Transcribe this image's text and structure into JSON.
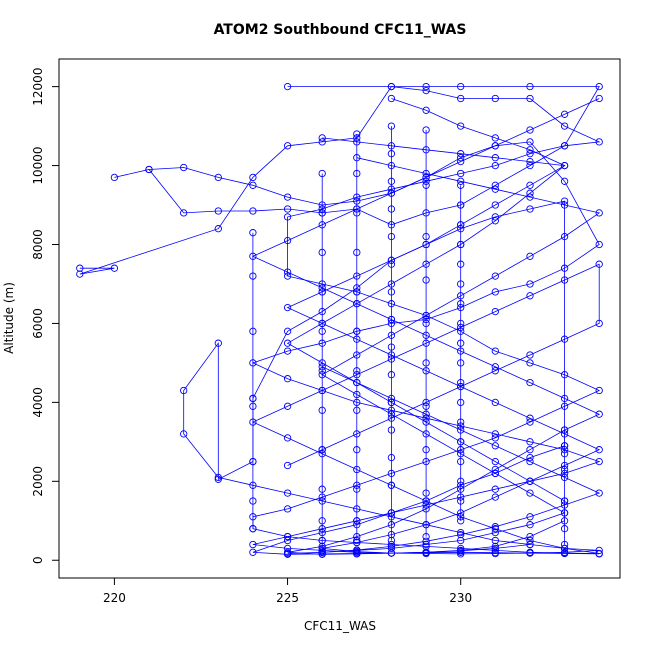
{
  "chart_data": {
    "type": "scatter",
    "title": "ATOM2 Southbound CFC11_WAS",
    "xlabel": "CFC11_WAS",
    "ylabel": "Altitude (m)",
    "xlim": [
      218.4,
      234.6
    ],
    "ylim": [
      -450,
      12700
    ],
    "x_ticks": [
      220,
      225,
      230
    ],
    "y_ticks": [
      0,
      2000,
      4000,
      6000,
      8000,
      10000,
      12000
    ],
    "grid": false,
    "legend": "none",
    "marker": "open-circle",
    "connected": true,
    "colors": {
      "series": "#0000ff",
      "axes": "#000000"
    },
    "series": [
      {
        "x": [
          219.0,
          220.0,
          219.0,
          223.0,
          224.0,
          225.0,
          226.0,
          227.0,
          228.0,
          229.0,
          230.0,
          231.0,
          232.0,
          233.0,
          234.0,
          233.0,
          232.0,
          231.0,
          230.0,
          229.0,
          228.0,
          227.0,
          226.0,
          225.0,
          224.0,
          223.0,
          222.0,
          221.0,
          220.0,
          221.0,
          222.0,
          223.0,
          224.0,
          225.0,
          226.0,
          227.0,
          228.0,
          229.0,
          230.0,
          231.0,
          232.0,
          233.0,
          234.0,
          233.0,
          232.0,
          231.0,
          230.0,
          229.0,
          228.0,
          227.0,
          226.0,
          225.0,
          224.0,
          225.0,
          226.0,
          227.0,
          228.0,
          229.0,
          230.0,
          231.0,
          232.0,
          233.0,
          234.0,
          233.0,
          232.0,
          231.0,
          230.0,
          229.0,
          228.0,
          227.0,
          226.0,
          225.0,
          224.0,
          225.0,
          226.0,
          227.0,
          228.0,
          229.0,
          230.0,
          231.0,
          232.0,
          233.0,
          234.0,
          233.0,
          232.0,
          231.0,
          230.0,
          229.0,
          228.0,
          227.0,
          226.0,
          225.0,
          224.0,
          223.0,
          222.0,
          222.0,
          223.0,
          223.0,
          224.0,
          224.0,
          225.0,
          226.0,
          227.0,
          228.0,
          229.0,
          230.0,
          231.0,
          232.0,
          233.0,
          233.0,
          232.0,
          231.0,
          230.0,
          229.0,
          228.0,
          227.0,
          226.0,
          225.0,
          224.0,
          225.0,
          226.0,
          227.0,
          228.0,
          229.0,
          230.0,
          231.0,
          232.0,
          233.0,
          234.0
        ],
        "y": [
          7400,
          7400,
          7250,
          8400,
          9700,
          10500,
          10600,
          10700,
          12000,
          11900,
          11700,
          11700,
          11700,
          11000,
          10600,
          10500,
          10000,
          9500,
          9000,
          8800,
          8500,
          8900,
          8800,
          8900,
          8850,
          8850,
          8800,
          9900,
          9700,
          9900,
          9950,
          9700,
          9500,
          9200,
          9000,
          9100,
          9300,
          9700,
          10200,
          10500,
          10600,
          9600,
          8000,
          7400,
          7000,
          6800,
          6400,
          6100,
          6000,
          5800,
          5500,
          5300,
          5000,
          4600,
          4300,
          4000,
          3800,
          3600,
          3400,
          3200,
          3000,
          2800,
          2500,
          2200,
          2000,
          1800,
          1600,
          1400,
          1200,
          1000,
          800,
          600,
          400,
          300,
          250,
          200,
          180,
          170,
          160,
          170,
          180,
          200,
          250,
          300,
          400,
          500,
          700,
          900,
          1100,
          1300,
          1500,
          1700,
          1900,
          2100,
          3200,
          4300,
          5500,
          2050,
          2500,
          4100,
          5800,
          6300,
          6900,
          7600,
          8000,
          8400,
          8700,
          8900,
          9100,
          2900,
          2600,
          2200,
          1900,
          1500,
          1200,
          900,
          700,
          500,
          200,
          150,
          160,
          170,
          180,
          190,
          200,
          190,
          180,
          170,
          160
        ]
      },
      {
        "x": [
          225.0,
          228.0,
          229.0,
          230.0,
          232.0,
          234.0,
          233.0,
          232.0,
          231.0,
          230.0,
          229.0,
          228.0,
          227.0,
          226.0,
          225.0,
          225.0,
          226.0,
          227.0,
          228.0,
          229.0,
          230.0,
          231.0,
          232.0,
          233.0,
          234.0,
          233.0,
          232.0,
          231.0,
          230.0,
          229.0,
          228.0,
          227.0,
          226.0,
          225.0,
          224.0,
          224.0,
          225.0,
          226.0,
          227.0,
          228.0,
          229.0,
          230.0,
          231.0,
          232.0,
          233.0,
          234.0,
          233.0,
          232.0,
          231.0,
          230.0,
          229.0,
          228.0,
          227.0,
          226.0,
          225.0,
          224.0,
          225.0,
          226.0,
          227.0,
          228.0,
          229.0,
          230.0,
          231.0,
          232.0,
          233.0,
          234.0,
          234.0,
          233.0,
          232.0,
          231.0,
          230.0,
          229.0,
          228.0,
          227.0,
          226.0,
          225.0
        ],
        "y": [
          12000,
          12000,
          12000,
          12000,
          12000,
          12000,
          10500,
          10300,
          10000,
          9800,
          9600,
          9400,
          9200,
          8900,
          8700,
          7200,
          7000,
          6800,
          6500,
          6200,
          5800,
          5300,
          5000,
          4700,
          4300,
          3900,
          3500,
          3100,
          2800,
          2500,
          2200,
          1900,
          1600,
          1300,
          1100,
          800,
          600,
          500,
          450,
          400,
          350,
          300,
          250,
          200,
          180,
          170,
          300,
          500,
          800,
          1100,
          1500,
          1900,
          2300,
          2700,
          3100,
          3500,
          3900,
          4300,
          4700,
          5100,
          5500,
          5900,
          6300,
          6700,
          7100,
          7500,
          6000,
          5600,
          5200,
          4800,
          4400,
          4000,
          3600,
          3200,
          2800,
          2400
        ]
      },
      {
        "x": [
          226.0,
          227.0,
          228.0,
          229.0,
          230.0,
          231.0,
          232.0,
          233.0,
          232.0,
          231.0,
          230.0,
          229.0,
          228.0,
          227.0,
          226.0,
          225.0,
          226.0,
          227.0,
          228.0,
          229.0,
          230.0,
          231.0,
          232.0,
          233.0,
          233.0,
          232.0,
          231.0,
          230.0,
          229.0,
          228.0,
          227.0,
          226.0,
          225.0,
          226.0,
          227.0,
          228.0,
          229.0,
          230.0,
          231.0,
          232.0,
          233.0,
          234.0,
          233.0,
          232.0,
          231.0,
          230.0,
          229.0,
          228.0,
          227.0,
          226.0,
          225.0,
          224.0,
          225.0,
          226.0,
          227.0,
          228.0,
          229.0,
          230.0,
          231.0,
          232.0,
          233.0,
          234.0
        ],
        "y": [
          10700,
          10600,
          10500,
          10400,
          10300,
          10200,
          10100,
          10000,
          9300,
          8600,
          8000,
          7500,
          7000,
          6500,
          6000,
          5500,
          5000,
          4500,
          4000,
          3500,
          3000,
          2500,
          2000,
          1500,
          1000,
          600,
          350,
          250,
          200,
          180,
          160,
          150,
          200,
          350,
          600,
          900,
          1300,
          1800,
          2300,
          2800,
          3300,
          3700,
          4100,
          4500,
          4900,
          5300,
          5700,
          6100,
          6500,
          6900,
          7300,
          7700,
          8100,
          8500,
          8900,
          9300,
          9700,
          10100,
          10500,
          10900,
          11300,
          11700
        ]
      },
      {
        "x": [
          227.0,
          228.0,
          229.0,
          230.0,
          231.0,
          232.0,
          233.0,
          234.0,
          233.0,
          232.0,
          231.0,
          230.0,
          229.0,
          228.0,
          227.0,
          226.0,
          227.0,
          228.0,
          229.0,
          230.0,
          231.0,
          232.0,
          233.0,
          232.0,
          231.0,
          230.0,
          229.0,
          228.0,
          227.0,
          226.0,
          225.0,
          226.0,
          227.0,
          228.0,
          229.0,
          230.0,
          231.0,
          232.0,
          233.0,
          234.0,
          233.0,
          232.0,
          231.0,
          230.0,
          229.0,
          228.0,
          227.0,
          226.0
        ],
        "y": [
          10200,
          10000,
          9800,
          9600,
          9400,
          9200,
          9000,
          8800,
          8200,
          7700,
          7200,
          6700,
          6200,
          5700,
          5200,
          4700,
          4200,
          3700,
          3200,
          2700,
          2200,
          1700,
          1200,
          900,
          700,
          500,
          400,
          300,
          250,
          200,
          170,
          200,
          260,
          350,
          480,
          650,
          850,
          1100,
          1400,
          1700,
          2100,
          2500,
          2900,
          3300,
          3700,
          4100,
          4500,
          4900
        ]
      },
      {
        "x": [
          228.0,
          229.0,
          230.0,
          231.0,
          232.0,
          233.0,
          232.0,
          231.0,
          230.0,
          229.0,
          228.0,
          227.0,
          226.0,
          225.0,
          226.0,
          227.0,
          228.0,
          229.0,
          230.0,
          231.0,
          232.0,
          233.0,
          234.0,
          233.0,
          232.0,
          231.0,
          230.0,
          229.0,
          228.0,
          227.0,
          226.0,
          227.0,
          228.0,
          229.0,
          230.0,
          231.0,
          232.0
        ],
        "y": [
          11700,
          11400,
          11000,
          10700,
          10400,
          10000,
          9500,
          9000,
          8500,
          8000,
          7600,
          7200,
          6800,
          6400,
          6000,
          5600,
          5200,
          4800,
          4400,
          4000,
          3600,
          3200,
          2800,
          2400,
          2000,
          1600,
          1200,
          900,
          650,
          450,
          300,
          220,
          180,
          200,
          240,
          300,
          400
        ]
      },
      {
        "x": [
          230.0,
          230.0,
          230.0,
          230.0,
          230.0,
          230.0,
          230.0,
          230.0,
          230.0,
          230.0,
          230.0,
          230.0,
          230.0,
          230.0,
          230.0,
          230.0,
          230.0,
          230.0
        ],
        "y": [
          9500,
          9000,
          8500,
          8000,
          7500,
          7000,
          6500,
          6000,
          5500,
          5000,
          4500,
          4000,
          3500,
          3000,
          2500,
          2000,
          1500,
          1000
        ]
      },
      {
        "x": [
          228.0,
          228.0,
          228.0,
          228.0,
          228.0,
          228.0,
          228.0,
          228.0,
          228.0,
          228.0,
          228.0,
          228.0,
          228.0,
          228.0,
          228.0,
          228.0
        ],
        "y": [
          11000,
          10300,
          9600,
          8900,
          8200,
          7500,
          6800,
          6100,
          5400,
          4700,
          4000,
          3300,
          2600,
          1900,
          1200,
          500
        ]
      },
      {
        "x": [
          226.0,
          226.0,
          226.0,
          226.0,
          226.0,
          226.0,
          226.0,
          226.0,
          226.0,
          226.0,
          226.0,
          226.0
        ],
        "y": [
          9800,
          8800,
          7800,
          6800,
          5800,
          4800,
          3800,
          2800,
          1800,
          1000,
          500,
          200
        ]
      },
      {
        "x": [
          224.0,
          224.0,
          224.0,
          224.0,
          224.0,
          224.0,
          224.0,
          224.0
        ],
        "y": [
          8300,
          7200,
          5800,
          4100,
          3900,
          2500,
          1500,
          800
        ]
      },
      {
        "x": [
          227.0,
          227.0,
          227.0,
          227.0,
          227.0,
          227.0,
          227.0,
          227.0,
          227.0,
          227.0,
          227.0,
          227.0
        ],
        "y": [
          10800,
          9800,
          8800,
          7800,
          6800,
          5800,
          4800,
          3800,
          2800,
          1800,
          1000,
          500
        ]
      },
      {
        "x": [
          233.0,
          233.0,
          233.0,
          233.0,
          233.0,
          233.0,
          233.0,
          233.0
        ],
        "y": [
          3300,
          2900,
          2700,
          2300,
          1500,
          1200,
          800,
          400
        ]
      },
      {
        "x": [
          229.0,
          229.0,
          229.0,
          229.0,
          229.0,
          229.0,
          229.0,
          229.0,
          229.0,
          229.0
        ],
        "y": [
          10900,
          9500,
          8200,
          7100,
          6000,
          5000,
          3900,
          2800,
          1700,
          600
        ]
      }
    ]
  }
}
